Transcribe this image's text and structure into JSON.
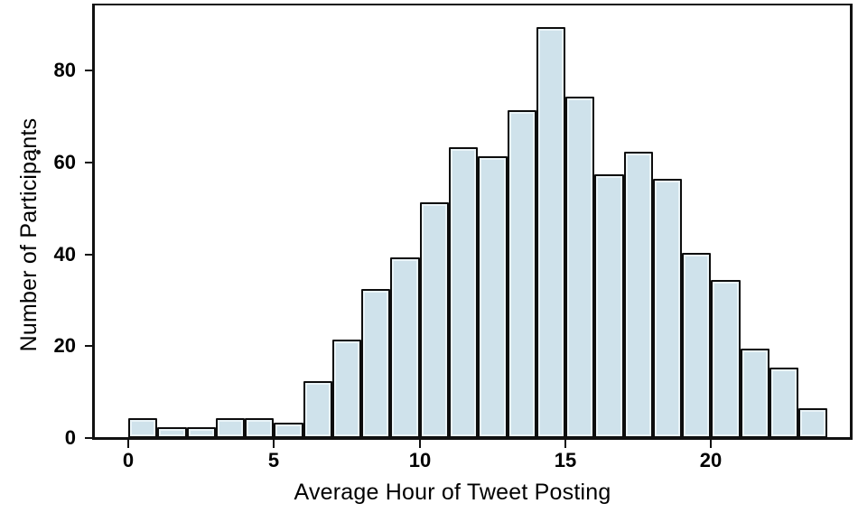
{
  "chart_data": {
    "type": "bar",
    "subtype": "histogram",
    "title": "",
    "xlabel": "Average Hour of Tweet Posting",
    "ylabel": "Number of Participants",
    "bin_width": 1,
    "bins": [
      0,
      1,
      2,
      3,
      4,
      5,
      6,
      7,
      8,
      9,
      10,
      11,
      12,
      13,
      14,
      15,
      16,
      17,
      18,
      19,
      20,
      21,
      22,
      23
    ],
    "values": [
      4,
      2,
      2,
      4,
      4,
      3,
      12,
      21,
      32,
      39,
      51,
      63,
      61,
      71,
      89,
      74,
      57,
      62,
      56,
      40,
      34,
      19,
      15,
      6
    ],
    "x_ticks": [
      0,
      5,
      10,
      15,
      20
    ],
    "y_ticks": [
      0,
      20,
      40,
      60,
      80
    ],
    "xlim": [
      -1.15,
      24.76
    ],
    "ylim": [
      0,
      94.2
    ],
    "grid": false,
    "legend": "none",
    "colors": {
      "bar_fill": "#cfe2eb",
      "bar_inner_highlight": "#eaf4f8",
      "bar_border": "#0d0d0d",
      "axis": "#111111",
      "text": "#000000"
    }
  }
}
